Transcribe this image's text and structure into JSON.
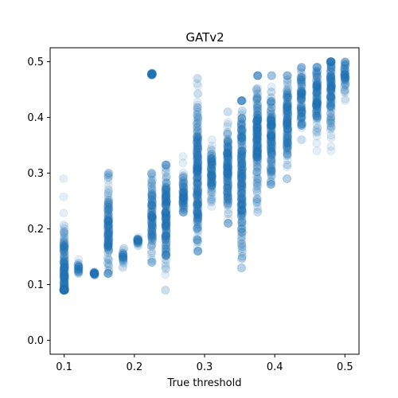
{
  "chart_data": {
    "type": "scatter",
    "title": "GATv2",
    "xlabel": "True threshold",
    "ylabel": "",
    "xlim": [
      0.08,
      0.52
    ],
    "ylim": [
      -0.025,
      0.525
    ],
    "xticks": [
      0.1,
      0.2,
      0.3,
      0.4,
      0.5
    ],
    "yticks": [
      0.0,
      0.1,
      0.2,
      0.3,
      0.4,
      0.5
    ],
    "xtick_labels": [
      "0.1",
      "0.2",
      "0.3",
      "0.4",
      "0.5"
    ],
    "ytick_labels": [
      "0.0",
      "0.1",
      "0.2",
      "0.3",
      "0.4",
      "0.5"
    ],
    "point_color": "#1f77b4",
    "point_alpha": 0.12,
    "grid": false,
    "series": [
      {
        "x_groups": [
          {
            "x": 0.1,
            "y_min": 0.09,
            "y_max": 0.29,
            "y_center": 0.13
          },
          {
            "x": 0.12,
            "y_min": 0.12,
            "y_max": 0.145,
            "y_center": 0.13
          },
          {
            "x": 0.143,
            "y_min": 0.117,
            "y_max": 0.123,
            "y_center": 0.12
          },
          {
            "x": 0.163,
            "y_min": 0.12,
            "y_max": 0.3,
            "y_center": 0.2
          },
          {
            "x": 0.184,
            "y_min": 0.13,
            "y_max": 0.165,
            "y_center": 0.15
          },
          {
            "x": 0.205,
            "y_min": 0.17,
            "y_max": 0.185,
            "y_center": 0.177
          },
          {
            "x": 0.225,
            "y_min": 0.14,
            "y_max": 0.3,
            "y_center": 0.22
          },
          {
            "x": 0.225,
            "y_min": 0.475,
            "y_max": 0.48,
            "y_center": 0.478
          },
          {
            "x": 0.245,
            "y_min": 0.09,
            "y_max": 0.315,
            "y_center": 0.22
          },
          {
            "x": 0.27,
            "y_min": 0.23,
            "y_max": 0.33,
            "y_center": 0.26
          },
          {
            "x": 0.29,
            "y_min": 0.16,
            "y_max": 0.47,
            "y_center": 0.29
          },
          {
            "x": 0.31,
            "y_min": 0.24,
            "y_max": 0.36,
            "y_center": 0.3
          },
          {
            "x": 0.333,
            "y_min": 0.21,
            "y_max": 0.41,
            "y_center": 0.3
          },
          {
            "x": 0.353,
            "y_min": 0.13,
            "y_max": 0.43,
            "y_center": 0.3
          },
          {
            "x": 0.375,
            "y_min": 0.23,
            "y_max": 0.475,
            "y_center": 0.36
          },
          {
            "x": 0.395,
            "y_min": 0.28,
            "y_max": 0.475,
            "y_center": 0.37
          },
          {
            "x": 0.418,
            "y_min": 0.29,
            "y_max": 0.475,
            "y_center": 0.39
          },
          {
            "x": 0.438,
            "y_min": 0.36,
            "y_max": 0.49,
            "y_center": 0.43
          },
          {
            "x": 0.46,
            "y_min": 0.34,
            "y_max": 0.49,
            "y_center": 0.44
          },
          {
            "x": 0.48,
            "y_min": 0.34,
            "y_max": 0.5,
            "y_center": 0.45
          },
          {
            "x": 0.5,
            "y_min": 0.43,
            "y_max": 0.5,
            "y_center": 0.475
          }
        ]
      }
    ]
  }
}
